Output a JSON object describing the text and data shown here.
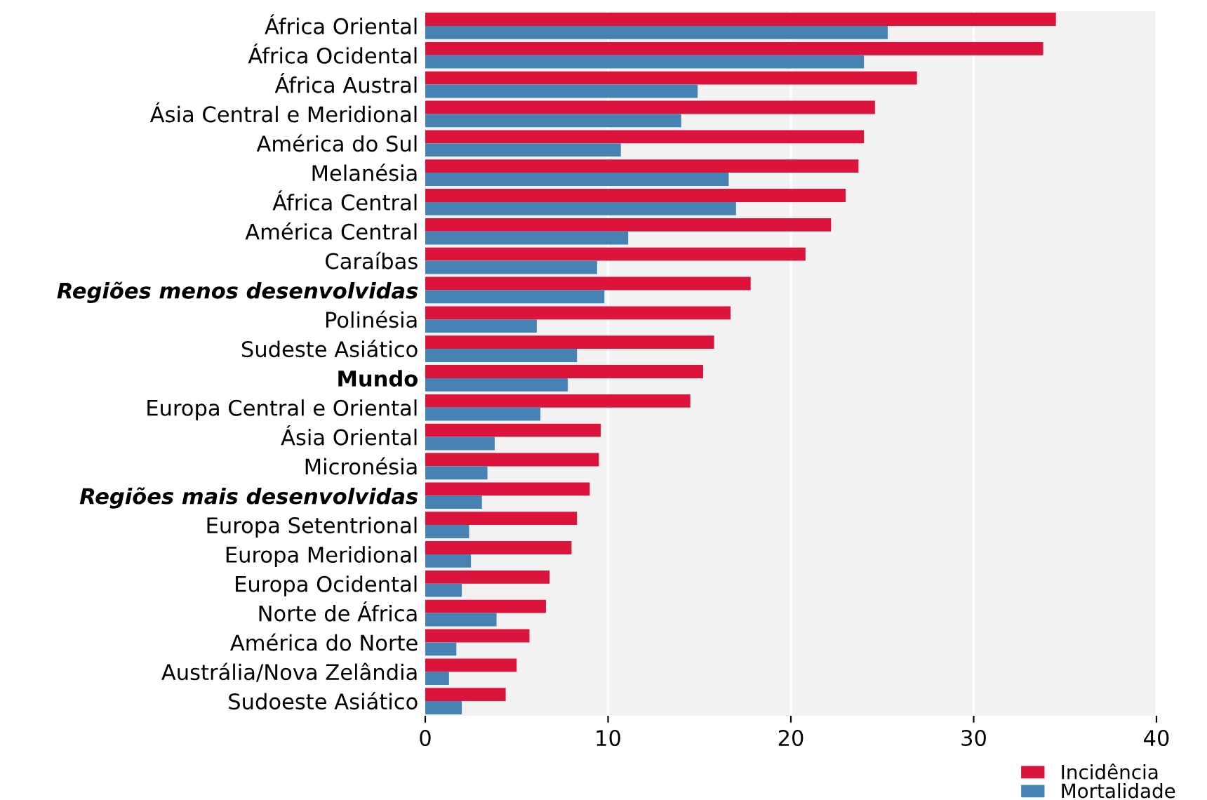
{
  "chart_data": {
    "type": "bar",
    "orientation": "horizontal",
    "categories": [
      "África Oriental",
      "África Ocidental",
      "África Austral",
      "Ásia Central e Meridional",
      "América do Sul",
      "Melanésia",
      "África Central",
      "América Central",
      "Caraíbas",
      "Regiões menos desenvolvidas",
      "Polinésia",
      "Sudeste Asiático",
      "Mundo",
      "Europa Central e Oriental",
      "Ásia Oriental",
      "Micronésia",
      "Regiões mais desenvolvidas",
      "Europa Setentrional",
      "Europa Meridional",
      "Europa Ocidental",
      "Norte de África",
      "América do Norte",
      "Austrália/Nova Zelândia",
      "Sudoeste Asiático"
    ],
    "series": [
      {
        "name": "Incidência",
        "color": "#dc143c",
        "values": [
          34.5,
          33.8,
          26.9,
          24.6,
          24.0,
          23.7,
          23.0,
          22.2,
          20.8,
          17.8,
          16.7,
          15.8,
          15.2,
          14.5,
          9.6,
          9.5,
          9.0,
          8.3,
          8.0,
          6.8,
          6.6,
          5.7,
          5.0,
          4.4
        ]
      },
      {
        "name": "Mortalidade",
        "color": "#4682b4",
        "values": [
          25.3,
          24.0,
          14.9,
          14.0,
          10.7,
          16.6,
          17.0,
          11.1,
          9.4,
          9.8,
          6.1,
          8.3,
          7.8,
          6.3,
          3.8,
          3.4,
          3.1,
          2.4,
          2.5,
          2.0,
          3.9,
          1.7,
          1.3,
          2.0
        ]
      }
    ],
    "xlim": [
      0,
      40
    ],
    "xticks": [
      0,
      10,
      20,
      30,
      40
    ],
    "grid": "x",
    "legend": "bottom right"
  }
}
